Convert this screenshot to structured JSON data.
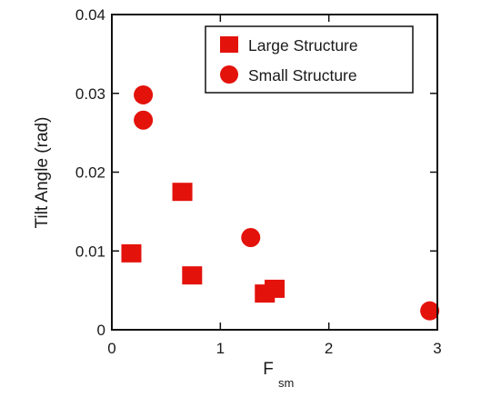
{
  "chart_data": {
    "type": "scatter",
    "xlabel_main": "F",
    "xlabel_sub": "sm",
    "ylabel": "Tilt Angle (rad)",
    "xlim": [
      0,
      3
    ],
    "ylim": [
      0,
      0.04
    ],
    "x_ticks": [
      0,
      1,
      2,
      3
    ],
    "y_ticks": [
      0,
      0.01,
      0.02,
      0.03,
      0.04
    ],
    "x_tick_labels": [
      "0",
      "1",
      "2",
      "3"
    ],
    "y_tick_labels": [
      "0",
      "0.01",
      "0.02",
      "0.03",
      "0.04"
    ],
    "grid": false,
    "legend_position": "top-right",
    "color": "#e3120b",
    "series": [
      {
        "name": "Large Structure",
        "marker": "square",
        "points": [
          {
            "x": 0.18,
            "y": 0.0097
          },
          {
            "x": 0.65,
            "y": 0.0175
          },
          {
            "x": 0.74,
            "y": 0.0069
          },
          {
            "x": 1.41,
            "y": 0.0046
          },
          {
            "x": 1.5,
            "y": 0.0052
          }
        ]
      },
      {
        "name": "Small Structure",
        "marker": "circle",
        "points": [
          {
            "x": 0.29,
            "y": 0.0298
          },
          {
            "x": 0.29,
            "y": 0.0266
          },
          {
            "x": 1.28,
            "y": 0.0117
          },
          {
            "x": 2.93,
            "y": 0.0024
          }
        ]
      }
    ]
  }
}
